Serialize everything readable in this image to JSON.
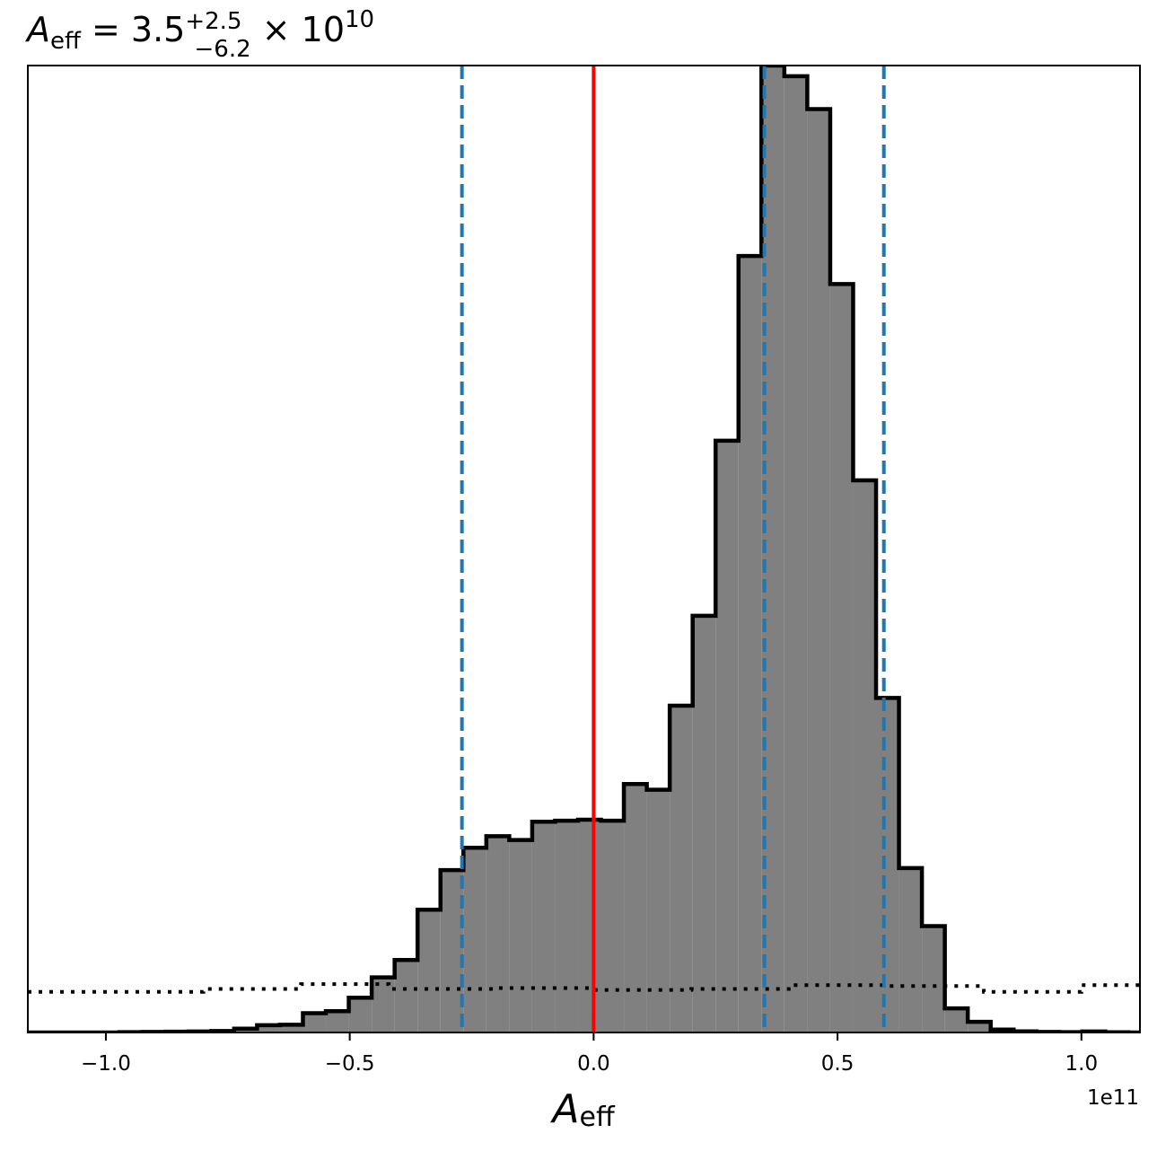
{
  "chart_data": {
    "type": "histogram",
    "title": {
      "var": "A",
      "var_sub": "eff",
      "eq": " = 3.5",
      "upper": "+2.5",
      "lower": "−6.2",
      "times": " × 10",
      "exponent": "10"
    },
    "xlabel": {
      "var": "A",
      "sub": "eff"
    },
    "x_offset_label": "1e11",
    "x_scale_factor": 100000000000.0,
    "xlim": [
      -1.16,
      1.12
    ],
    "ylim": [
      0,
      1.0
    ],
    "xticks": [
      -1.0,
      -0.5,
      0.0,
      0.5,
      1.0
    ],
    "xtick_labels": [
      "−1.0",
      "−0.5",
      "0.0",
      "0.5",
      "1.0"
    ],
    "show_yticks": false,
    "grid": false,
    "histogram": {
      "fill_color": "#808080",
      "edge_color": "#000000",
      "bin_edges": [
        -1.16,
        -1.113,
        -1.066,
        -1.019,
        -0.972,
        -0.925,
        -0.878,
        -0.831,
        -0.784,
        -0.737,
        -0.69,
        -0.643,
        -0.596,
        -0.549,
        -0.502,
        -0.455,
        -0.408,
        -0.361,
        -0.314,
        -0.267,
        -0.22,
        -0.173,
        -0.126,
        -0.079,
        -0.032,
        0.015,
        0.062,
        0.109,
        0.156,
        0.203,
        0.25,
        0.297,
        0.344,
        0.391,
        0.438,
        0.485,
        0.532,
        0.579,
        0.626,
        0.673,
        0.72,
        0.767,
        0.814,
        0.861,
        0.908,
        0.955,
        1.002,
        1.049,
        1.096,
        1.12
      ],
      "counts": [
        0,
        0,
        0,
        0,
        0.0004,
        0.0006,
        0.0008,
        0.001,
        0.0015,
        0.004,
        0.0075,
        0.008,
        0.02,
        0.022,
        0.036,
        0.057,
        0.075,
        0.127,
        0.168,
        0.191,
        0.203,
        0.199,
        0.218,
        0.219,
        0.22,
        0.219,
        0.257,
        0.251,
        0.338,
        0.431,
        0.612,
        0.803,
        1.0,
        0.989,
        0.955,
        0.774,
        0.571,
        0.346,
        0.17,
        0.11,
        0.025,
        0.011,
        0.003,
        0.0012,
        0.0006,
        0.0003,
        0.001,
        0.0002,
        0
      ]
    },
    "prior": {
      "line_style": "dotted",
      "color": "#000000",
      "bin_edges": [
        -1.16,
        -0.99,
        -0.8,
        -0.6,
        -0.42,
        -0.2,
        0.0,
        0.2,
        0.4,
        0.6,
        0.8,
        1.0,
        1.12
      ],
      "values": [
        0.042,
        0.042,
        0.045,
        0.05,
        0.045,
        0.046,
        0.044,
        0.045,
        0.049,
        0.048,
        0.042,
        0.049
      ]
    },
    "vertical_lines": [
      {
        "name": "true-value-line",
        "x": 0.0,
        "color": "#ff0000",
        "style": "solid"
      },
      {
        "name": "lower-bound-line",
        "x": -0.27,
        "color": "#1f77b4",
        "style": "dashed"
      },
      {
        "name": "median-line",
        "x": 0.35,
        "color": "#1f77b4",
        "style": "dashed"
      },
      {
        "name": "upper-bound-line",
        "x": 0.595,
        "color": "#1f77b4",
        "style": "dashed"
      }
    ]
  }
}
